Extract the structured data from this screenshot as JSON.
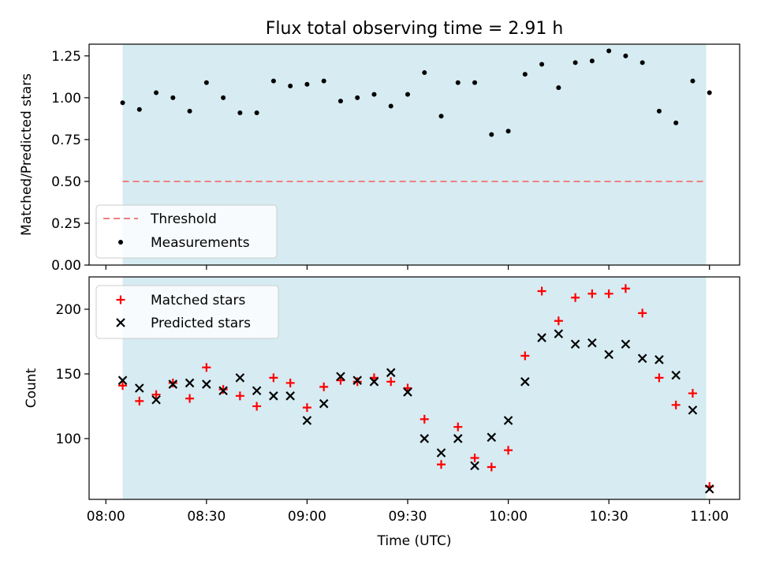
{
  "chart_data": {
    "title": "Flux total observing time = 2.91 h",
    "xlabel": "Time (UTC)",
    "x_tick_labels": [
      "08:00",
      "08:30",
      "09:00",
      "09:30",
      "10:00",
      "10:30",
      "11:00"
    ],
    "x_ticks": [
      "08:00",
      "08:30",
      "09:00",
      "09:30",
      "10:00",
      "10:30",
      "11:00"
    ],
    "xlim": [
      "07:55",
      "11:09"
    ],
    "shaded_interval": [
      "08:05",
      "10:59"
    ],
    "colors": {
      "shade": "#add8e6",
      "threshold": "#f08080",
      "measurement": "#000000",
      "matched": "#ff0000",
      "predicted": "#000000"
    },
    "panels": [
      {
        "type": "scatter",
        "ylabel": "Matched/Predicted stars",
        "ylim": [
          0,
          1.32
        ],
        "y_ticks": [
          0.0,
          0.25,
          0.5,
          0.75,
          1.0,
          1.25
        ],
        "y_tick_labels": [
          "0.00",
          "0.25",
          "0.50",
          "0.75",
          "1.00",
          "1.25"
        ],
        "legend_position": "lower-left",
        "threshold": {
          "name": "Threshold",
          "value": 0.5
        },
        "series": [
          {
            "name": "Measurements",
            "x": [
              "08:05",
              "08:10",
              "08:15",
              "08:20",
              "08:25",
              "08:30",
              "08:35",
              "08:40",
              "08:45",
              "08:50",
              "08:55",
              "09:00",
              "09:05",
              "09:10",
              "09:15",
              "09:20",
              "09:25",
              "09:30",
              "09:35",
              "09:40",
              "09:45",
              "09:50",
              "09:55",
              "10:00",
              "10:05",
              "10:10",
              "10:15",
              "10:20",
              "10:25",
              "10:30",
              "10:35",
              "10:40",
              "10:45",
              "10:50",
              "10:55",
              "11:00"
            ],
            "values": [
              0.97,
              0.93,
              1.03,
              1.0,
              0.92,
              1.09,
              1.0,
              0.91,
              0.91,
              1.1,
              1.07,
              1.08,
              1.1,
              0.98,
              1.0,
              1.02,
              0.95,
              1.02,
              1.15,
              0.89,
              1.09,
              1.09,
              0.78,
              0.8,
              1.14,
              1.2,
              1.06,
              1.21,
              1.22,
              1.28,
              1.25,
              1.21,
              0.92,
              0.85,
              1.1,
              1.03
            ]
          }
        ]
      },
      {
        "type": "scatter",
        "ylabel": "Count",
        "ylim": [
          53,
          225
        ],
        "y_ticks": [
          100,
          150,
          200
        ],
        "y_tick_labels": [
          "100",
          "150",
          "200"
        ],
        "legend_position": "top-left",
        "series": [
          {
            "name": "Matched stars",
            "marker": "+",
            "x": [
              "08:05",
              "08:10",
              "08:15",
              "08:20",
              "08:25",
              "08:30",
              "08:35",
              "08:40",
              "08:45",
              "08:50",
              "08:55",
              "09:00",
              "09:05",
              "09:10",
              "09:15",
              "09:20",
              "09:25",
              "09:30",
              "09:35",
              "09:40",
              "09:45",
              "09:50",
              "09:55",
              "10:00",
              "10:05",
              "10:10",
              "10:15",
              "10:20",
              "10:25",
              "10:30",
              "10:35",
              "10:40",
              "10:45",
              "10:50",
              "10:55",
              "11:00"
            ],
            "values": [
              141,
              129,
              134,
              143,
              131,
              155,
              138,
              133,
              125,
              147,
              143,
              124,
              140,
              145,
              144,
              147,
              144,
              139,
              115,
              80,
              109,
              85,
              78,
              91,
              164,
              214,
              191,
              209,
              212,
              212,
              216,
              197,
              147,
              126,
              135,
              63
            ]
          },
          {
            "name": "Predicted stars",
            "marker": "x",
            "x": [
              "08:05",
              "08:10",
              "08:15",
              "08:20",
              "08:25",
              "08:30",
              "08:35",
              "08:40",
              "08:45",
              "08:50",
              "08:55",
              "09:00",
              "09:05",
              "09:10",
              "09:15",
              "09:20",
              "09:25",
              "09:30",
              "09:35",
              "09:40",
              "09:45",
              "09:50",
              "09:55",
              "10:00",
              "10:05",
              "10:10",
              "10:15",
              "10:20",
              "10:25",
              "10:30",
              "10:35",
              "10:40",
              "10:45",
              "10:50",
              "10:55",
              "11:00"
            ],
            "values": [
              145,
              139,
              130,
              142,
              143,
              142,
              137,
              147,
              137,
              133,
              133,
              114,
              127,
              148,
              145,
              144,
              151,
              136,
              100,
              89,
              100,
              79,
              101,
              114,
              144,
              178,
              181,
              173,
              174,
              165,
              173,
              162,
              161,
              149,
              122,
              61
            ]
          }
        ]
      }
    ]
  }
}
